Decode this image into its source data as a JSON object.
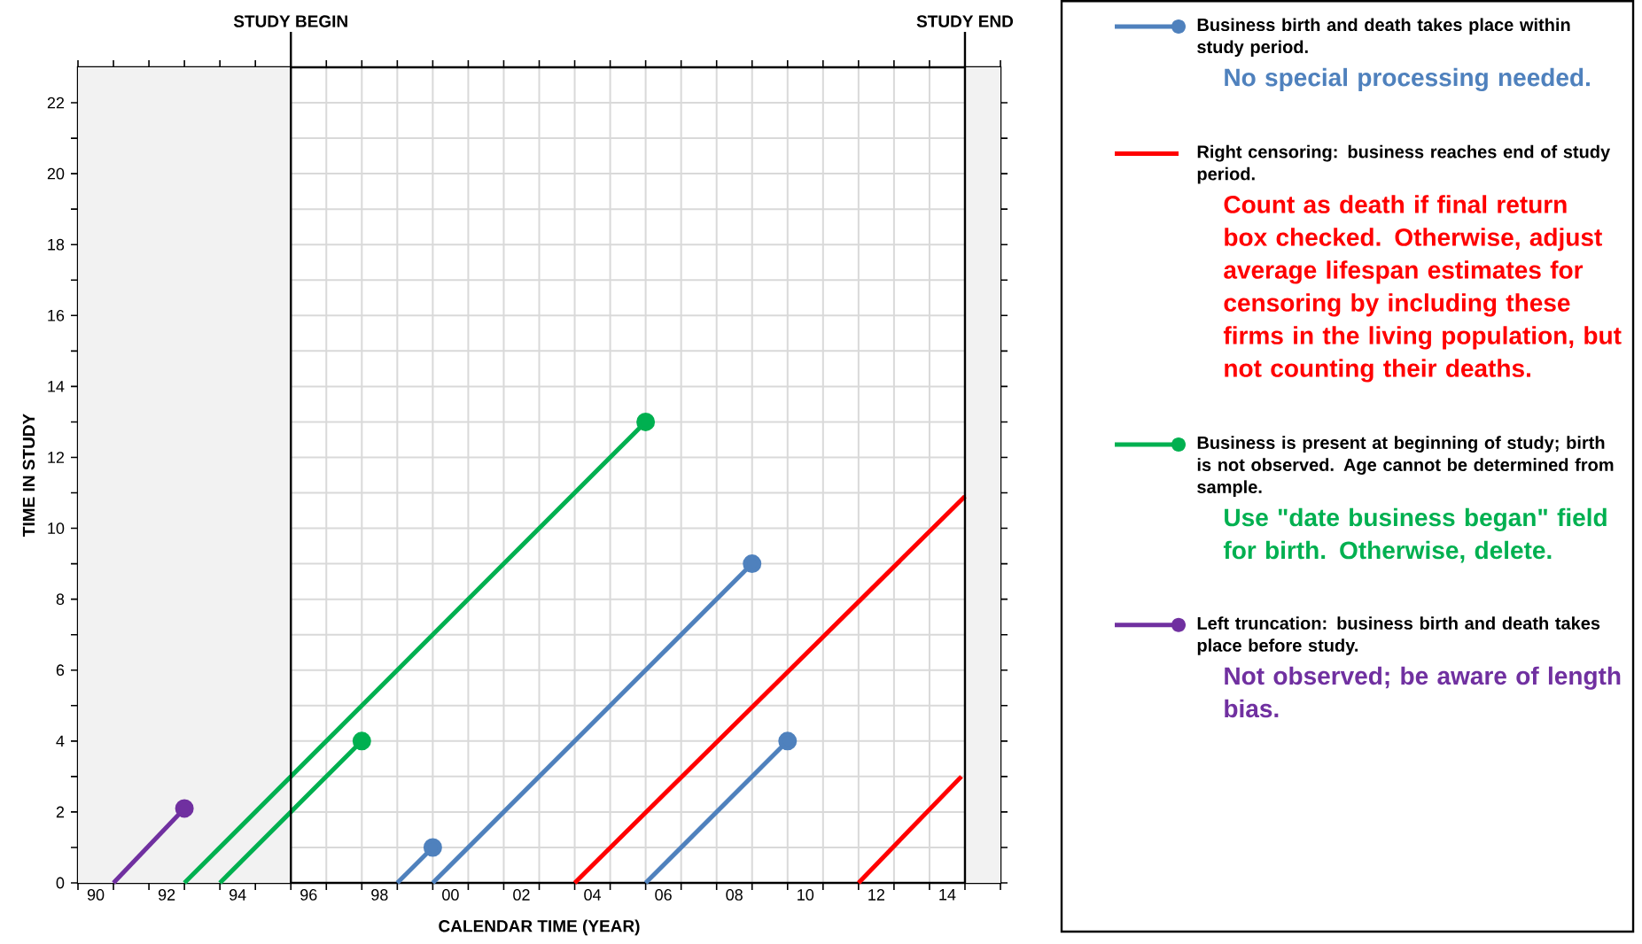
{
  "chart_data": {
    "type": "line",
    "xlabel": "CALENDAR TIME (YEAR)",
    "ylabel": "TIME IN STUDY",
    "xlim": [
      1989.5,
      2015.5
    ],
    "ylim": [
      0,
      23
    ],
    "xticks": [
      {
        "value": 1989.5,
        "label": null
      },
      {
        "value": 1990.5,
        "label": null
      },
      {
        "value": 1991.5,
        "label": null
      },
      {
        "value": 1992.5,
        "label": null
      },
      {
        "value": 1993.5,
        "label": null
      },
      {
        "value": 1994.5,
        "label": null
      },
      {
        "value": 1995.5,
        "label": null
      },
      {
        "value": 1996.5,
        "label": null
      },
      {
        "value": 1997.5,
        "label": null
      },
      {
        "value": 1998.5,
        "label": null
      },
      {
        "value": 1999.5,
        "label": null
      },
      {
        "value": 2000.5,
        "label": null
      },
      {
        "value": 2001.5,
        "label": null
      },
      {
        "value": 2002.5,
        "label": null
      },
      {
        "value": 2003.5,
        "label": null
      },
      {
        "value": 2004.5,
        "label": null
      },
      {
        "value": 2005.5,
        "label": null
      },
      {
        "value": 2006.5,
        "label": null
      },
      {
        "value": 2007.5,
        "label": null
      },
      {
        "value": 2008.5,
        "label": null
      },
      {
        "value": 2009.5,
        "label": null
      },
      {
        "value": 2010.5,
        "label": null
      },
      {
        "value": 2011.5,
        "label": null
      },
      {
        "value": 2012.5,
        "label": null
      },
      {
        "value": 2013.5,
        "label": null
      },
      {
        "value": 2014.5,
        "label": null
      },
      {
        "value": 2015.5,
        "label": null
      },
      {
        "value": 1990,
        "label": "90"
      },
      {
        "value": 1992,
        "label": "92"
      },
      {
        "value": 1994,
        "label": "94"
      },
      {
        "value": 1996,
        "label": "96"
      },
      {
        "value": 1998,
        "label": "98"
      },
      {
        "value": 2000,
        "label": "00"
      },
      {
        "value": 2002,
        "label": "02"
      },
      {
        "value": 2004,
        "label": "04"
      },
      {
        "value": 2006,
        "label": "06"
      },
      {
        "value": 2008,
        "label": "08"
      },
      {
        "value": 2010,
        "label": "10"
      },
      {
        "value": 2012,
        "label": "12"
      },
      {
        "value": 2014,
        "label": "14"
      }
    ],
    "yticks": [
      0,
      {
        "value": 1,
        "label": null
      },
      2,
      {
        "value": 3,
        "label": null
      },
      4,
      {
        "value": 5,
        "label": null
      },
      6,
      {
        "value": 7,
        "label": null
      },
      8,
      {
        "value": 9,
        "label": null
      },
      10,
      {
        "value": 11,
        "label": null
      },
      12,
      {
        "value": 13,
        "label": null
      },
      14,
      {
        "value": 15,
        "label": null
      },
      16,
      {
        "value": 17,
        "label": null
      },
      18,
      {
        "value": 19,
        "label": null
      },
      20,
      {
        "value": 21,
        "label": null
      },
      22
    ],
    "grid": true,
    "legend": "right",
    "series": [
      {
        "name": "Business birth and death takes place within study period.",
        "color": "#4f81bd",
        "marker": "circle",
        "x": [
          1998.5,
          1999.5
        ],
        "values": [
          0,
          1
        ]
      },
      {
        "color": "#4f81bd",
        "marker": "circle",
        "x": [
          1999.5,
          2008.5
        ],
        "values": [
          0,
          9
        ]
      },
      {
        "color": "#4f81bd",
        "marker": "circle",
        "x": [
          2005.5,
          2009.5
        ],
        "values": [
          0,
          4
        ]
      },
      {
        "name": "Right censoring: business reaches end of study period.",
        "color": "#ff0000",
        "marker": "none",
        "x": [
          2003.5,
          2014.5
        ],
        "values": [
          0,
          10.9
        ]
      },
      {
        "color": "#ff0000",
        "marker": "none",
        "x": [
          2011.5,
          2014.4
        ],
        "values": [
          0,
          3
        ]
      },
      {
        "name": "Business is present at beginning of study; birth is not observed. Age cannot be determined from sample.",
        "color": "#00b050",
        "marker": "circle",
        "x": [
          1992.5,
          2005.5
        ],
        "values": [
          0,
          13
        ]
      },
      {
        "color": "#00b050",
        "marker": "circle",
        "x": [
          1993.5,
          1997.5
        ],
        "values": [
          0,
          4
        ]
      },
      {
        "name": "Left truncation: business birth and death takes place before study.",
        "color": "#7030a0",
        "marker": "circle",
        "x": [
          1990.5,
          1992.5
        ],
        "values": [
          0,
          2.1
        ]
      }
    ],
    "annotations": [
      "No special processing needed.",
      "Count as death if final return box checked.  Otherwise, adjust average lifespan estimates for censoring by including these firms in the living population, but not counting their deaths.",
      "Use \"date business began\" field for birth.  Otherwise, delete.",
      "Not observed; be aware of length bias."
    ],
    "ref_lines": [
      {
        "axis": "x",
        "value": 1995.5,
        "label": "STUDY BEGIN"
      },
      {
        "axis": "x",
        "value": 2014.5,
        "label": "STUDY END"
      }
    ],
    "bands": [
      {
        "axis": "x",
        "from": 1989.5,
        "to": 1995.5,
        "color": "#f2f2f2"
      },
      {
        "axis": "x",
        "from": 2014.5,
        "to": 2015.5,
        "color": "#f2f2f2"
      }
    ]
  }
}
